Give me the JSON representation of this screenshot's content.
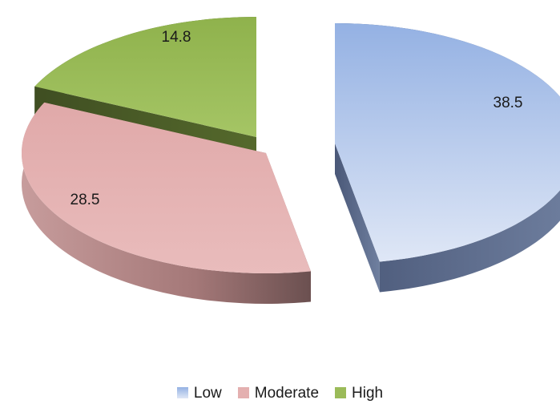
{
  "chart_data": {
    "type": "pie",
    "variant": "3d-exploded",
    "categories": [
      "Low",
      "Moderate",
      "High"
    ],
    "values": [
      38.5,
      28.5,
      14.8
    ],
    "data_labels": [
      "38.5",
      "28.5",
      "14.8"
    ],
    "colors": [
      "#a6bde6",
      "#e4b0b0",
      "#9bbb59"
    ],
    "legend_position": "bottom",
    "title": ""
  },
  "legend": [
    {
      "label": "Low",
      "color": "#a6bde6"
    },
    {
      "label": "Moderate",
      "color": "#e4b0b0"
    },
    {
      "label": "High",
      "color": "#9bbb59"
    }
  ]
}
